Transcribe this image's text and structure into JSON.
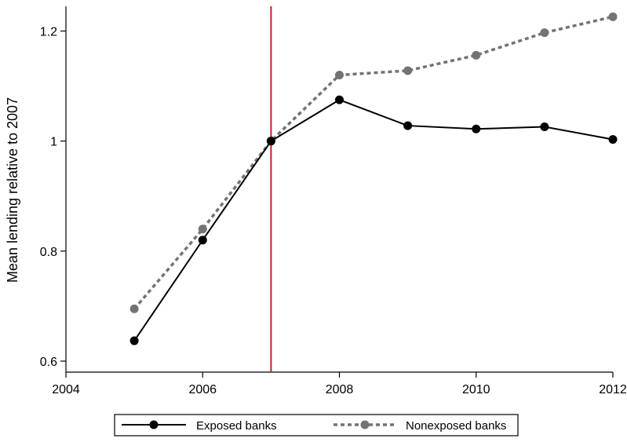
{
  "chart_data": {
    "type": "line",
    "title": "",
    "xlabel": "",
    "ylabel": "Mean lending relative to 2007",
    "x": [
      2005,
      2006,
      2007,
      2008,
      2009,
      2010,
      2011,
      2012
    ],
    "xlim": [
      2004,
      2012
    ],
    "ylim": [
      0.58,
      1.245
    ],
    "xticks": [
      2004,
      2006,
      2008,
      2010,
      2012
    ],
    "xtick_labels": [
      "2004",
      "2006",
      "2008",
      "2010",
      "2012"
    ],
    "yticks": [
      0.6,
      0.8,
      1.0,
      1.2
    ],
    "ytick_labels": [
      "0.6",
      "0.8",
      "1",
      "1.2"
    ],
    "vline": {
      "x": 2007,
      "color": "#c0202a"
    },
    "grid": false,
    "legend_position": "bottom",
    "series": [
      {
        "name": "Exposed banks",
        "color": "#000000",
        "style": "solid",
        "marker": "circle",
        "values": [
          0.637,
          0.82,
          1.0,
          1.075,
          1.028,
          1.022,
          1.026,
          1.003
        ]
      },
      {
        "name": "Nonexposed banks",
        "color": "#737373",
        "style": "dotted",
        "marker": "circle",
        "values": [
          0.695,
          0.84,
          1.0,
          1.12,
          1.128,
          1.156,
          1.197,
          1.226
        ]
      }
    ]
  }
}
